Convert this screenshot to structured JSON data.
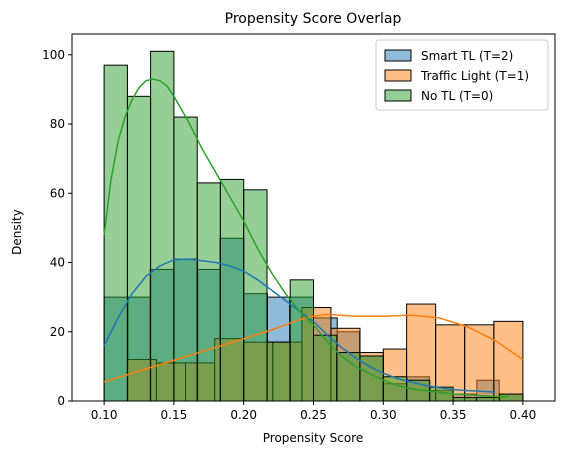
{
  "chart_data": {
    "type": "histogram",
    "title": "Propensity Score Overlap",
    "xlabel": "Propensity Score",
    "ylabel": "Density",
    "xlim": [
      0.077,
      0.423
    ],
    "ylim": [
      0,
      106
    ],
    "xticks": [
      0.1,
      0.15,
      0.2,
      0.25,
      0.3,
      0.35,
      0.4
    ],
    "yticks": [
      0,
      20,
      40,
      60,
      80,
      100
    ],
    "grid": false,
    "legend_position": "top-right",
    "legend": [
      "Smart TL (T=2)",
      "Traffic Light (T=1)",
      "No TL (T=0)"
    ],
    "series": [
      {
        "name": "Smart TL (T=2)",
        "color": "#1f77b4",
        "bins": [
          {
            "x0": 0.1,
            "x1": 0.117,
            "value": 30
          },
          {
            "x0": 0.117,
            "x1": 0.133,
            "value": 30
          },
          {
            "x0": 0.133,
            "x1": 0.15,
            "value": 38
          },
          {
            "x0": 0.15,
            "x1": 0.167,
            "value": 41
          },
          {
            "x0": 0.167,
            "x1": 0.183,
            "value": 38
          },
          {
            "x0": 0.183,
            "x1": 0.2,
            "value": 47
          },
          {
            "x0": 0.2,
            "x1": 0.217,
            "value": 31
          },
          {
            "x0": 0.217,
            "x1": 0.233,
            "value": 30
          },
          {
            "x0": 0.233,
            "x1": 0.25,
            "value": 30
          },
          {
            "x0": 0.25,
            "x1": 0.267,
            "value": 24
          },
          {
            "x0": 0.267,
            "x1": 0.283,
            "value": 20
          },
          {
            "x0": 0.283,
            "x1": 0.3,
            "value": 13
          },
          {
            "x0": 0.3,
            "x1": 0.317,
            "value": 5
          },
          {
            "x0": 0.317,
            "x1": 0.333,
            "value": 7
          },
          {
            "x0": 0.333,
            "x1": 0.35,
            "value": 3
          },
          {
            "x0": 0.35,
            "x1": 0.367,
            "value": 2
          },
          {
            "x0": 0.367,
            "x1": 0.383,
            "value": 6
          },
          {
            "x0": 0.383,
            "x1": 0.4,
            "value": 2
          }
        ],
        "kde": {
          "x": [
            0.1,
            0.11,
            0.12,
            0.13,
            0.14,
            0.15,
            0.16,
            0.17,
            0.18,
            0.19,
            0.2,
            0.21,
            0.22,
            0.23,
            0.24,
            0.25,
            0.26,
            0.27,
            0.28,
            0.29,
            0.3,
            0.31,
            0.32,
            0.33,
            0.34,
            0.35,
            0.36,
            0.37,
            0.38
          ],
          "y": [
            16,
            24,
            31,
            36,
            39,
            40.8,
            41,
            40.5,
            40,
            39,
            37.5,
            35,
            32,
            29,
            26,
            23,
            19,
            15.5,
            12.5,
            10,
            8,
            6.5,
            5.5,
            4.5,
            3.8,
            3.3,
            3,
            2.8,
            2.5
          ]
        }
      },
      {
        "name": "Traffic Light (T=1)",
        "color": "#ff7f0e",
        "bins": [
          {
            "x0": 0.1,
            "x1": 0.1167,
            "value": 0
          },
          {
            "x0": 0.1167,
            "x1": 0.1375,
            "value": 12
          },
          {
            "x0": 0.1375,
            "x1": 0.1583,
            "value": 11
          },
          {
            "x0": 0.1583,
            "x1": 0.1792,
            "value": 11
          },
          {
            "x0": 0.1792,
            "x1": 0.2,
            "value": 18
          },
          {
            "x0": 0.2,
            "x1": 0.2208,
            "value": 17
          },
          {
            "x0": 0.2208,
            "x1": 0.2417,
            "value": 17
          },
          {
            "x0": 0.2417,
            "x1": 0.2625,
            "value": 27
          },
          {
            "x0": 0.2625,
            "x1": 0.2833,
            "value": 21
          },
          {
            "x0": 0.2833,
            "x1": 0.3,
            "value": 14
          },
          {
            "x0": 0.3,
            "x1": 0.3167,
            "value": 15
          },
          {
            "x0": 0.3167,
            "x1": 0.3375,
            "value": 28
          },
          {
            "x0": 0.3375,
            "x1": 0.3583,
            "value": 22
          },
          {
            "x0": 0.3583,
            "x1": 0.3792,
            "value": 22
          },
          {
            "x0": 0.3792,
            "x1": 0.4,
            "value": 23
          }
        ],
        "kde": {
          "x": [
            0.1,
            0.12,
            0.14,
            0.16,
            0.18,
            0.2,
            0.22,
            0.24,
            0.25,
            0.26,
            0.28,
            0.3,
            0.32,
            0.34,
            0.36,
            0.38,
            0.4
          ],
          "y": [
            5.5,
            8,
            10.5,
            13,
            15.5,
            18,
            20.5,
            23.5,
            24.5,
            25,
            24.5,
            24.5,
            24.8,
            24,
            21.5,
            17.5,
            12
          ]
        }
      },
      {
        "name": "No TL (T=0)",
        "color": "#2ca02c",
        "bins": [
          {
            "x0": 0.1,
            "x1": 0.1167,
            "value": 97
          },
          {
            "x0": 0.1167,
            "x1": 0.1333,
            "value": 88
          },
          {
            "x0": 0.1333,
            "x1": 0.15,
            "value": 101
          },
          {
            "x0": 0.15,
            "x1": 0.1667,
            "value": 82
          },
          {
            "x0": 0.1667,
            "x1": 0.1833,
            "value": 63
          },
          {
            "x0": 0.1833,
            "x1": 0.2,
            "value": 64
          },
          {
            "x0": 0.2,
            "x1": 0.2167,
            "value": 61
          },
          {
            "x0": 0.2167,
            "x1": 0.2333,
            "value": 17
          },
          {
            "x0": 0.2333,
            "x1": 0.25,
            "value": 35
          },
          {
            "x0": 0.25,
            "x1": 0.2667,
            "value": 19
          },
          {
            "x0": 0.2667,
            "x1": 0.2833,
            "value": 14
          },
          {
            "x0": 0.2833,
            "x1": 0.3,
            "value": 13
          },
          {
            "x0": 0.3,
            "x1": 0.3167,
            "value": 7
          },
          {
            "x0": 0.3167,
            "x1": 0.3333,
            "value": 6
          },
          {
            "x0": 0.3333,
            "x1": 0.35,
            "value": 4
          },
          {
            "x0": 0.35,
            "x1": 0.3667,
            "value": 1
          },
          {
            "x0": 0.3667,
            "x1": 0.3833,
            "value": 1
          },
          {
            "x0": 0.3833,
            "x1": 0.4,
            "value": 2
          }
        ],
        "kde": {
          "x": [
            0.1,
            0.105,
            0.11,
            0.115,
            0.12,
            0.125,
            0.13,
            0.135,
            0.14,
            0.145,
            0.15,
            0.16,
            0.17,
            0.18,
            0.19,
            0.2,
            0.21,
            0.22,
            0.23,
            0.24,
            0.25,
            0.26,
            0.27,
            0.28,
            0.29,
            0.3,
            0.31,
            0.32,
            0.33,
            0.34,
            0.35,
            0.36,
            0.37,
            0.38,
            0.39
          ],
          "y": [
            48,
            64,
            75,
            82,
            87,
            90.5,
            92.5,
            93,
            92.5,
            91,
            88,
            81,
            73,
            66,
            59,
            52,
            44,
            37,
            31,
            26,
            22,
            17,
            13,
            10,
            8,
            6,
            4.5,
            3.5,
            3,
            2.5,
            2,
            1.8,
            1.5,
            1.3,
            1.2
          ]
        }
      }
    ]
  }
}
